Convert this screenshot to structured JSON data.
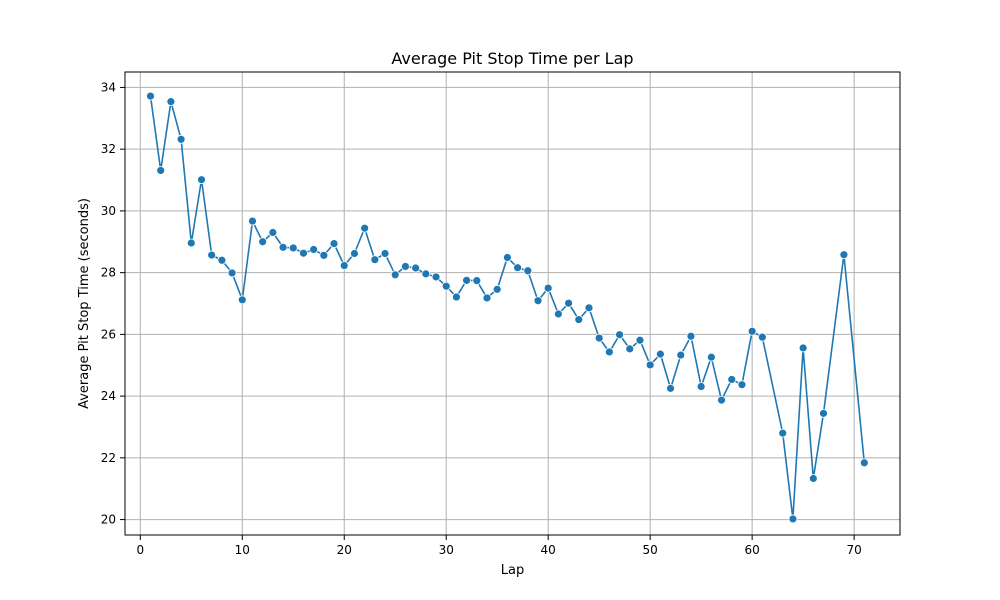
{
  "chart_data": {
    "type": "line",
    "title": "Average Pit Stop Time per Lap",
    "xlabel": "Lap",
    "ylabel": "Average Pit Stop Time (seconds)",
    "xlim": [
      -1.5,
      74.5
    ],
    "ylim": [
      19.5,
      34.5
    ],
    "xticks": [
      0,
      10,
      20,
      30,
      40,
      50,
      60,
      70
    ],
    "yticks": [
      20,
      22,
      24,
      26,
      28,
      30,
      32,
      34
    ],
    "grid": true,
    "series": [
      {
        "color": "#1f77b4",
        "marker": "circle",
        "x": [
          1,
          2,
          3,
          4,
          5,
          6,
          7,
          8,
          9,
          10,
          11,
          12,
          13,
          14,
          15,
          16,
          17,
          18,
          19,
          20,
          21,
          22,
          23,
          24,
          25,
          26,
          27,
          28,
          29,
          30,
          31,
          32,
          33,
          34,
          35,
          36,
          37,
          38,
          39,
          40,
          41,
          42,
          43,
          44,
          45,
          46,
          47,
          48,
          49,
          50,
          51,
          52,
          53,
          54,
          55,
          56,
          57,
          58,
          59,
          60,
          61,
          63,
          64,
          65,
          66,
          67,
          69,
          71
        ],
        "y": [
          33.72,
          31.31,
          33.54,
          32.32,
          28.96,
          31.01,
          28.57,
          28.4,
          27.99,
          27.12,
          29.67,
          29.0,
          29.3,
          28.82,
          28.8,
          28.63,
          28.75,
          28.56,
          28.94,
          28.23,
          28.62,
          29.44,
          28.42,
          28.62,
          27.93,
          28.2,
          28.15,
          27.96,
          27.86,
          27.56,
          27.21,
          27.75,
          27.74,
          27.18,
          27.46,
          28.49,
          28.16,
          28.06,
          27.09,
          27.5,
          26.66,
          27.01,
          26.48,
          26.86,
          25.88,
          25.43,
          25.99,
          25.53,
          25.81,
          25.01,
          25.36,
          24.25,
          25.33,
          25.94,
          24.31,
          25.26,
          23.87,
          24.54,
          24.37,
          26.1,
          25.91,
          22.8,
          20.02,
          25.56,
          21.33,
          23.44,
          28.58,
          21.84
        ]
      }
    ]
  }
}
